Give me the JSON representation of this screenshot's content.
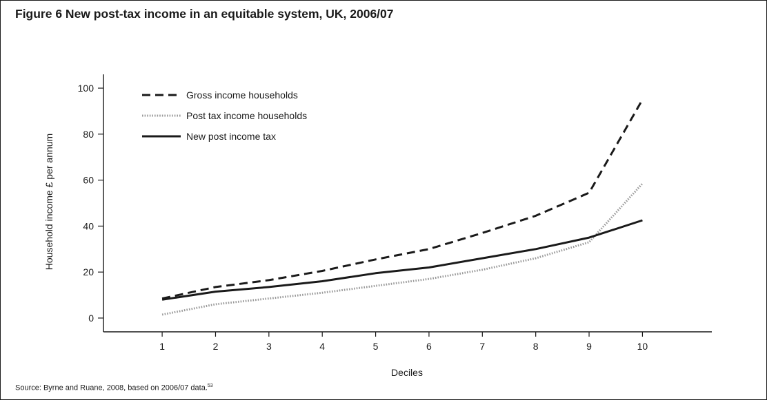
{
  "figure": {
    "title": "Figure 6 New post-tax income in an equitable system, UK, 2006/07",
    "source": "Source: Byrne and Ruane, 2008, based on 2006/07 data.",
    "source_ref": "53"
  },
  "chart_data": {
    "type": "line",
    "xlabel": "Deciles",
    "ylabel": "Household income £ per annum",
    "x": [
      1,
      2,
      3,
      4,
      5,
      6,
      7,
      8,
      9,
      10
    ],
    "x_tick_labels": [
      "1",
      "2",
      "3",
      "4",
      "5",
      "6",
      "7",
      "8",
      "9",
      "10"
    ],
    "y_ticks": [
      0,
      20,
      40,
      60,
      80,
      100
    ],
    "ylim": [
      -6,
      106
    ],
    "xlim": [
      -0.1,
      11.3
    ],
    "grid": false,
    "legend_position": "top-left",
    "series": [
      {
        "name": "Gross income households",
        "style": "dashed",
        "color": "#1a1a1a",
        "values": [
          8.5,
          13.5,
          16.5,
          20.5,
          25.5,
          30,
          37,
          44.5,
          54.5,
          95
        ]
      },
      {
        "name": "Post tax income households",
        "style": "dotted",
        "color": "#999999",
        "values": [
          1.5,
          6,
          8.5,
          11,
          14,
          17,
          21,
          26,
          33,
          58.5
        ]
      },
      {
        "name": "New post income tax",
        "style": "solid",
        "color": "#1a1a1a",
        "values": [
          8,
          11.5,
          13.5,
          16,
          19.5,
          22,
          26,
          30,
          35,
          42.5
        ]
      }
    ]
  }
}
